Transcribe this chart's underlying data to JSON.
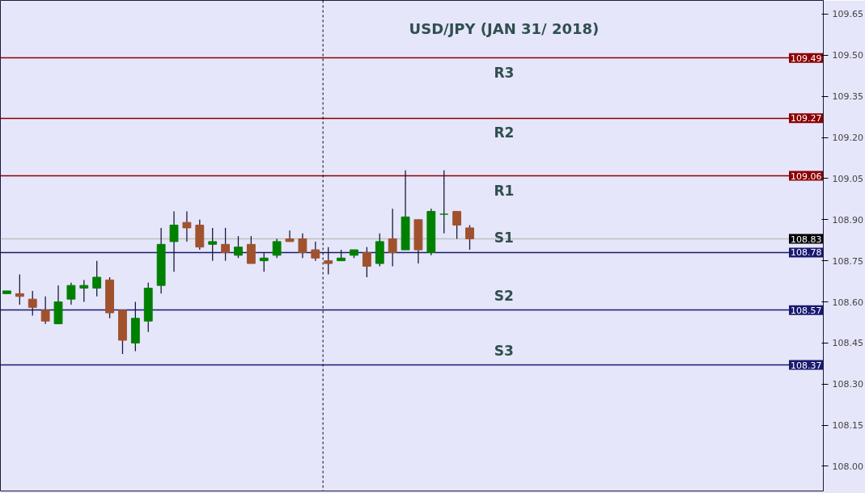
{
  "chart_data": {
    "type": "candlestick",
    "title": "USD/JPY (JAN 31/ 2018)",
    "categories": [
      null,
      null,
      null,
      null,
      null,
      null,
      null,
      null,
      null,
      null,
      null,
      null,
      null,
      null,
      null,
      null,
      null,
      null,
      null,
      null,
      null,
      null,
      null,
      null,
      null,
      null,
      null,
      null,
      null,
      null,
      null,
      null,
      null,
      null,
      null,
      null,
      null,
      null,
      null,
      null,
      null,
      null,
      null,
      null,
      null,
      null,
      null,
      null,
      null,
      null,
      null,
      null,
      null,
      null,
      null,
      null,
      null,
      null,
      null,
      null,
      null,
      null,
      null,
      null
    ],
    "ohlc": [
      [
        108.63,
        108.64,
        108.63,
        108.64
      ],
      [
        108.63,
        108.7,
        108.59,
        108.62
      ],
      [
        108.61,
        108.64,
        108.55,
        108.58
      ],
      [
        108.57,
        108.62,
        108.52,
        108.53
      ],
      [
        108.52,
        108.66,
        108.52,
        108.6
      ],
      [
        108.61,
        108.67,
        108.59,
        108.66
      ],
      [
        108.65,
        108.68,
        108.6,
        108.66
      ],
      [
        108.65,
        108.75,
        108.62,
        108.69
      ],
      [
        108.68,
        108.69,
        108.54,
        108.56
      ],
      [
        108.57,
        108.57,
        108.41,
        108.46
      ],
      [
        108.45,
        108.6,
        108.42,
        108.54
      ],
      [
        108.53,
        108.67,
        108.49,
        108.65
      ],
      [
        108.66,
        108.87,
        108.63,
        108.81
      ],
      [
        108.82,
        108.93,
        108.71,
        108.88
      ],
      [
        108.89,
        108.93,
        108.82,
        108.87
      ],
      [
        108.88,
        108.9,
        108.79,
        108.8
      ],
      [
        108.81,
        108.87,
        108.75,
        108.82
      ],
      [
        108.81,
        108.87,
        108.75,
        108.78
      ],
      [
        108.77,
        108.84,
        108.76,
        108.8
      ],
      [
        108.81,
        108.84,
        108.74,
        108.74
      ],
      [
        108.75,
        108.78,
        108.71,
        108.76
      ],
      [
        108.77,
        108.83,
        108.76,
        108.82
      ],
      [
        108.83,
        108.86,
        108.82,
        108.82
      ],
      [
        108.83,
        108.85,
        108.76,
        108.78
      ],
      [
        108.79,
        108.82,
        108.75,
        108.76
      ],
      [
        108.75,
        108.8,
        108.7,
        108.74
      ],
      [
        108.75,
        108.79,
        108.75,
        108.76
      ],
      [
        108.77,
        108.79,
        108.76,
        108.79
      ],
      [
        108.78,
        108.8,
        108.69,
        108.73
      ],
      [
        108.74,
        108.85,
        108.73,
        108.82
      ],
      [
        108.83,
        108.94,
        108.73,
        108.78
      ],
      [
        108.79,
        109.08,
        108.79,
        108.91
      ],
      [
        108.9,
        108.9,
        108.74,
        108.79
      ],
      [
        108.78,
        108.94,
        108.77,
        108.93
      ],
      [
        108.92,
        109.08,
        108.85,
        108.92
      ],
      [
        108.93,
        108.93,
        108.83,
        108.88
      ],
      [
        108.87,
        108.88,
        108.79,
        108.83
      ],
      null,
      null,
      null,
      null,
      null,
      null,
      null,
      null,
      null,
      null,
      null,
      null,
      null,
      null,
      null,
      null,
      null,
      null,
      null,
      null,
      null,
      null,
      null,
      null,
      null,
      null,
      null
    ],
    "colors": [
      "#008000",
      "#a0522d",
      "#a0522d",
      "#a0522d",
      "#008000",
      "#008000",
      "#008000",
      "#008000",
      "#a0522d",
      "#a0522d",
      "#008000",
      "#008000",
      "#008000",
      "#008000",
      "#a0522d",
      "#a0522d",
      "#008000",
      "#a0522d",
      "#008000",
      "#a0522d",
      "#008000",
      "#008000",
      "#a0522d",
      "#a0522d",
      "#a0522d",
      "#a0522d",
      "#008000",
      "#008000",
      "#a0522d",
      "#008000",
      "#a0522d",
      "#008000",
      "#a0522d",
      "#008000",
      "#008000",
      "#a0522d",
      "#a0522d",
      null,
      null,
      null,
      null,
      null,
      null,
      null,
      null,
      null,
      null,
      null,
      null,
      null,
      null,
      null,
      null,
      null,
      null,
      null,
      null,
      null,
      null,
      null,
      null,
      null,
      null,
      null
    ],
    "ylim": [
      107.91,
      109.7
    ],
    "yticks": [
      {
        "value": 108.0,
        "label": "108.00"
      },
      108.15,
      {
        "value": 108.3,
        "label": "108.30"
      },
      108.45,
      {
        "value": 108.6,
        "label": "108.60"
      },
      108.75,
      {
        "value": 108.9,
        "label": "108.90"
      },
      109.05,
      {
        "value": 109.2,
        "label": "109.20"
      },
      109.35,
      {
        "value": 109.5,
        "label": "109.50"
      },
      109.65
    ],
    "ref_lines": [
      {
        "axis": "y",
        "value": 109.49,
        "label": "R3",
        "color": "#8b0000"
      },
      {
        "axis": "y",
        "value": 109.27,
        "label": "R2",
        "color": "#8b0000"
      },
      {
        "axis": "y",
        "value": 109.06,
        "label": "R1",
        "color": "#8b0000"
      },
      {
        "axis": "y",
        "value": 108.78,
        "label": "S1",
        "color": "#191970"
      },
      {
        "axis": "y",
        "value": 108.57,
        "label": "S2",
        "color": "#191970"
      },
      {
        "axis": "y",
        "value": 108.37,
        "label": "S3",
        "color": "#191970"
      },
      {
        "axis": "y",
        "value": 108.83,
        "color": "#c0c0c0"
      }
    ],
    "annotations": [
      {
        "text": "109.49",
        "y": 109.49
      },
      {
        "text": "109.27",
        "y": 109.27
      },
      {
        "text": "109.06",
        "y": 109.06
      },
      {
        "text": "108.83",
        "y": 108.83
      },
      {
        "text": "108.78",
        "y": 108.78
      },
      {
        "text": "108.57",
        "y": 108.57
      },
      {
        "text": "108.37",
        "y": 108.37
      }
    ],
    "grid": false
  }
}
